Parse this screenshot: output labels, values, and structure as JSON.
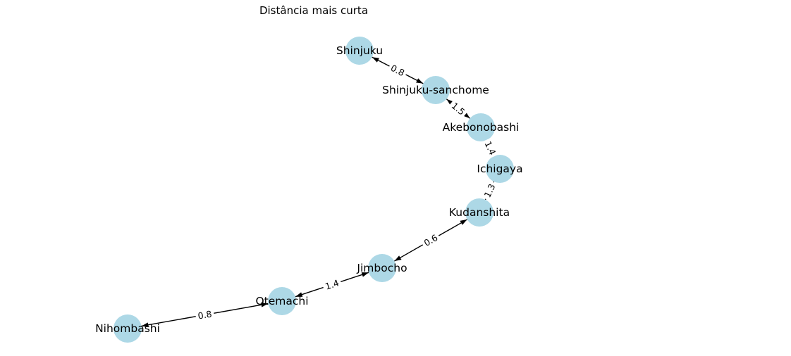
{
  "title": "Distância mais curta",
  "node_color": "#add8e6",
  "edge_color": "#000000",
  "nodes": [
    "Shinjuku",
    "Shinjuku-sanchome",
    "Akebonobashi",
    "Ichigaya",
    "Kudanshita",
    "Jimbocho",
    "Otemachi",
    "Nihombashi"
  ],
  "edges": [
    {
      "from": "Shinjuku",
      "to": "Shinjuku-sanchome",
      "weight": "0.8"
    },
    {
      "from": "Shinjuku-sanchome",
      "to": "Akebonobashi",
      "weight": "1.5"
    },
    {
      "from": "Akebonobashi",
      "to": "Ichigaya",
      "weight": "1.4"
    },
    {
      "from": "Ichigaya",
      "to": "Kudanshita",
      "weight": "1.3"
    },
    {
      "from": "Kudanshita",
      "to": "Jimbocho",
      "weight": "0.6"
    },
    {
      "from": "Jimbocho",
      "to": "Otemachi",
      "weight": "1.4"
    },
    {
      "from": "Otemachi",
      "to": "Nihombashi",
      "weight": "0.8"
    }
  ]
}
